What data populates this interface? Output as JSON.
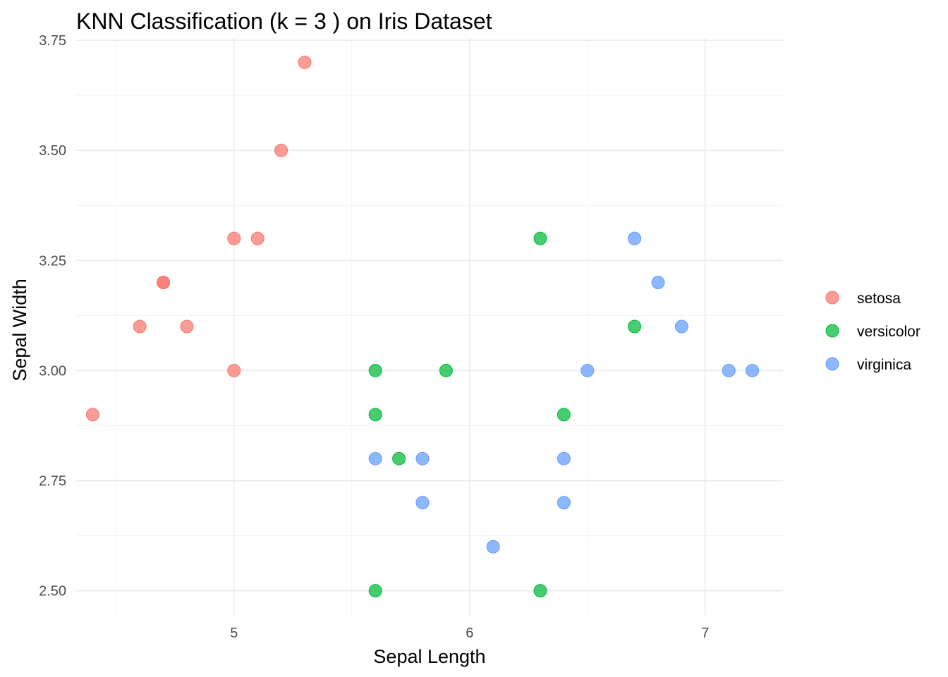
{
  "chart_data": {
    "type": "scatter",
    "title": "KNN Classification (k = 3 ) on Iris Dataset",
    "xlabel": "Sepal Length",
    "ylabel": "Sepal Width",
    "xlim": [
      4.33,
      7.33
    ],
    "ylim": [
      2.445,
      3.755
    ],
    "x_major_ticks": [
      5,
      6,
      7
    ],
    "x_minor_ticks": [
      4.5,
      5.5,
      6.5
    ],
    "y_major_ticks": [
      2.5,
      2.75,
      3.0,
      3.25,
      3.5,
      3.75
    ],
    "y_minor_ticks": [
      2.625,
      2.875,
      3.125,
      3.375,
      3.625
    ],
    "x_tick_labels": [
      "5",
      "6",
      "7"
    ],
    "y_tick_labels": [
      "2.50",
      "2.75",
      "3.00",
      "3.25",
      "3.50",
      "3.75"
    ],
    "grid": true,
    "legend_position": "right",
    "series": [
      {
        "name": "setosa",
        "color": "#F8766D",
        "points": [
          {
            "x": 5.3,
            "y": 3.7
          },
          {
            "x": 5.2,
            "y": 3.5
          },
          {
            "x": 5.0,
            "y": 3.3
          },
          {
            "x": 5.1,
            "y": 3.3
          },
          {
            "x": 4.7,
            "y": 3.2
          },
          {
            "x": 4.7,
            "y": 3.2
          },
          {
            "x": 4.6,
            "y": 3.1
          },
          {
            "x": 4.8,
            "y": 3.1
          },
          {
            "x": 5.0,
            "y": 3.0
          },
          {
            "x": 4.4,
            "y": 2.9
          }
        ]
      },
      {
        "name": "versicolor",
        "color": "#00BA38",
        "points": [
          {
            "x": 6.3,
            "y": 3.3
          },
          {
            "x": 6.7,
            "y": 3.1
          },
          {
            "x": 5.6,
            "y": 3.0
          },
          {
            "x": 5.9,
            "y": 3.0
          },
          {
            "x": 5.6,
            "y": 2.9
          },
          {
            "x": 6.4,
            "y": 2.9
          },
          {
            "x": 5.7,
            "y": 2.8
          },
          {
            "x": 5.6,
            "y": 2.5
          },
          {
            "x": 6.3,
            "y": 2.5
          }
        ]
      },
      {
        "name": "virginica",
        "color": "#619CFF",
        "points": [
          {
            "x": 6.7,
            "y": 3.3
          },
          {
            "x": 6.8,
            "y": 3.2
          },
          {
            "x": 6.9,
            "y": 3.1
          },
          {
            "x": 6.5,
            "y": 3.0
          },
          {
            "x": 7.1,
            "y": 3.0
          },
          {
            "x": 7.2,
            "y": 3.0
          },
          {
            "x": 5.6,
            "y": 2.8
          },
          {
            "x": 5.8,
            "y": 2.8
          },
          {
            "x": 6.4,
            "y": 2.8
          },
          {
            "x": 5.8,
            "y": 2.7
          },
          {
            "x": 6.4,
            "y": 2.7
          },
          {
            "x": 6.1,
            "y": 2.6
          }
        ]
      }
    ]
  }
}
